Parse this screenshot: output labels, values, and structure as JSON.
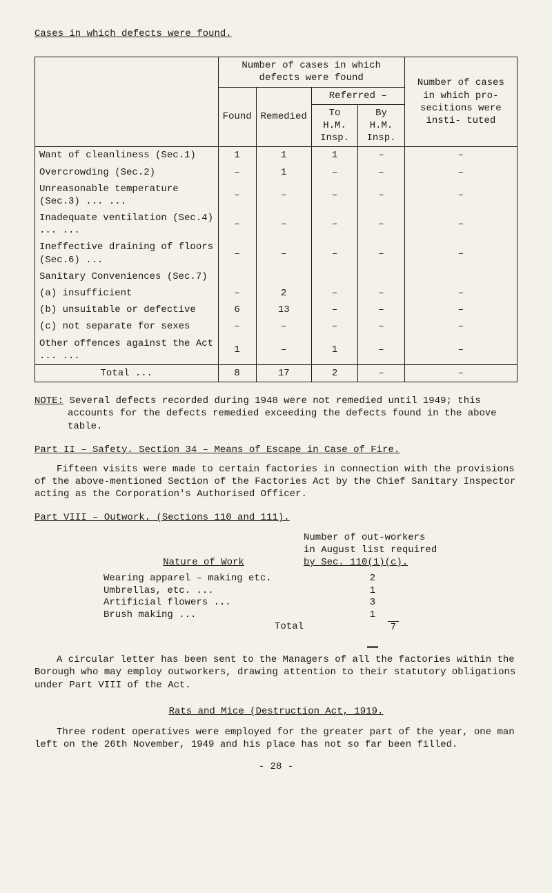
{
  "page": {
    "title": "Cases in which defects were found.",
    "footer": "- 28 -"
  },
  "table": {
    "head": {
      "group1": "Number of cases in which defects were found",
      "referred": "Referred –",
      "found": "Found",
      "remedied": "Remedied",
      "toHM": "To H.M. Insp.",
      "byHM": "By H.M. Insp.",
      "numberOf": "Number of cases in which pro- secitions were insti- tuted"
    },
    "rows": [
      {
        "label": "Want of cleanliness (Sec.1)",
        "found": "1",
        "remedied": "1",
        "toHM": "1",
        "byHM": "–",
        "pros": "–"
      },
      {
        "label": "Overcrowding (Sec.2)",
        "found": "–",
        "remedied": "1",
        "toHM": "–",
        "byHM": "–",
        "pros": "–"
      },
      {
        "label": "Unreasonable temperature (Sec.3)   ...   ...",
        "found": "–",
        "remedied": "–",
        "toHM": "–",
        "byHM": "–",
        "pros": "–"
      },
      {
        "label": "Inadequate ventilation (Sec.4)   ...   ...",
        "found": "–",
        "remedied": "–",
        "toHM": "–",
        "byHM": "–",
        "pros": "–"
      },
      {
        "label": "Ineffective draining of floors (Sec.6)   ...",
        "found": "–",
        "remedied": "–",
        "toHM": "–",
        "byHM": "–",
        "pros": "–"
      },
      {
        "label": "Sanitary Conveniences (Sec.7)",
        "found": "",
        "remedied": "",
        "toHM": "",
        "byHM": "",
        "pros": ""
      },
      {
        "label": "  (a) insufficient",
        "found": "–",
        "remedied": "2",
        "toHM": "–",
        "byHM": "–",
        "pros": "–"
      },
      {
        "label": "  (b) unsuitable or defective",
        "found": "6",
        "remedied": "13",
        "toHM": "–",
        "byHM": "–",
        "pros": "–"
      },
      {
        "label": "  (c) not separate for sexes",
        "found": "–",
        "remedied": "–",
        "toHM": "–",
        "byHM": "–",
        "pros": "–"
      },
      {
        "label": "Other offences against the Act   ...   ...",
        "found": "1",
        "remedied": "–",
        "toHM": "1",
        "byHM": "–",
        "pros": "–"
      }
    ],
    "total": {
      "label": "Total   ...",
      "found": "8",
      "remedied": "17",
      "toHM": "2",
      "byHM": "–",
      "pros": "–"
    }
  },
  "note": {
    "label": "NOTE:",
    "text": " Several defects recorded during 1948 were not remedied until 1949; this accounts for the defects remedied exceeding the defects found in the above table."
  },
  "partII": {
    "header": "Part II – Safety.  Section 34 – Means of Escape in Case of Fire.",
    "body": "Fifteen visits were made to certain factories in connection with the provisions of the above-mentioned Section of the Factories Act by the Chief Sanitary Inspector acting as the Corporation's Authorised Officer."
  },
  "partVIII": {
    "header": "Part VIII – Outwork.  (Sections 110 and 111).",
    "colheader1": "Nature of Work",
    "colheader2a": "Number of out-workers",
    "colheader2b": "in August list required",
    "colheader2c": "by Sec. 110(1)(c).",
    "rows": [
      {
        "name": "Wearing apparel – making etc.",
        "val": "2"
      },
      {
        "name": "Umbrellas, etc.   ...",
        "val": "1"
      },
      {
        "name": "Artificial flowers   ...",
        "val": "3"
      },
      {
        "name": "Brush making   ...",
        "val": "1"
      }
    ],
    "totalLabel": "Total",
    "totalVal": "7",
    "body": "A circular letter has been sent to the Managers of all the factories within the Borough who may employ outworkers, drawing attention to their statutory obligations under Part VIII of the Act."
  },
  "rats": {
    "header": "Rats and Mice (Destruction Act, 1919.",
    "body": "Three rodent operatives were employed for the greater part of the year, one man left on the 26th November, 1949 and his place has not so far been filled."
  },
  "style": {
    "background": "#f3f1e8",
    "text": "#1a1a1a",
    "font": "Courier New"
  }
}
